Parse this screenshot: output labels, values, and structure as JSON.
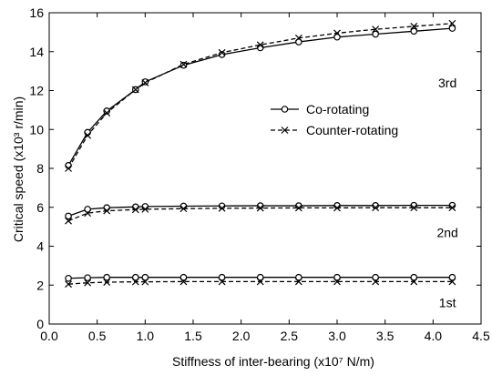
{
  "chart_data": {
    "type": "line",
    "xlabel": "Stiffness of inter-bearing (x10⁷ N/m)",
    "ylabel": "Critical speed (x10³ r/min)",
    "xlim": [
      0.0,
      4.5
    ],
    "ylim": [
      0,
      16
    ],
    "xticks": [
      "0.0",
      "0.5",
      "1.0",
      "1.5",
      "2.0",
      "2.5",
      "3.0",
      "3.5",
      "4.0",
      "4.5"
    ],
    "yticks": [
      "0",
      "2",
      "4",
      "6",
      "8",
      "10",
      "12",
      "14",
      "16"
    ],
    "grid": false,
    "legend_position": "center-right",
    "mode_labels": [
      {
        "text": "3rd",
        "x": 4.15,
        "y": 12.4
      },
      {
        "text": "2nd",
        "x": 4.15,
        "y": 4.7
      },
      {
        "text": "1st",
        "x": 4.15,
        "y": 1.1
      }
    ],
    "x": [
      0.2,
      0.4,
      0.6,
      0.9,
      1.0,
      1.4,
      1.8,
      2.2,
      2.6,
      3.0,
      3.4,
      3.8,
      4.2
    ],
    "series": [
      {
        "name": "Co-rotating",
        "mode": "3rd",
        "style": "solid",
        "marker": "circle",
        "values": [
          8.15,
          9.85,
          10.95,
          12.05,
          12.45,
          13.3,
          13.85,
          14.2,
          14.5,
          14.75,
          14.9,
          15.05,
          15.2
        ]
      },
      {
        "name": "Counter-rotating",
        "mode": "3rd",
        "style": "dashed",
        "marker": "x",
        "values": [
          8.0,
          9.7,
          10.85,
          12.05,
          12.4,
          13.35,
          13.95,
          14.35,
          14.7,
          14.95,
          15.15,
          15.3,
          15.45
        ]
      },
      {
        "name": "Co-rotating",
        "mode": "2nd",
        "style": "solid",
        "marker": "circle",
        "values": [
          5.55,
          5.9,
          5.98,
          6.02,
          6.04,
          6.06,
          6.07,
          6.08,
          6.08,
          6.09,
          6.09,
          6.1,
          6.1
        ]
      },
      {
        "name": "Counter-rotating",
        "mode": "2nd",
        "style": "dashed",
        "marker": "x",
        "values": [
          5.3,
          5.7,
          5.82,
          5.88,
          5.9,
          5.93,
          5.95,
          5.96,
          5.97,
          5.97,
          5.98,
          5.98,
          5.98
        ]
      },
      {
        "name": "Co-rotating",
        "mode": "1st",
        "style": "solid",
        "marker": "circle",
        "values": [
          2.35,
          2.38,
          2.4,
          2.4,
          2.4,
          2.4,
          2.4,
          2.4,
          2.4,
          2.4,
          2.4,
          2.4,
          2.4
        ]
      },
      {
        "name": "Counter-rotating",
        "mode": "1st",
        "style": "dashed",
        "marker": "x",
        "values": [
          2.05,
          2.12,
          2.15,
          2.17,
          2.17,
          2.18,
          2.18,
          2.18,
          2.18,
          2.18,
          2.18,
          2.18,
          2.18
        ]
      }
    ],
    "legend": [
      {
        "label": "Co-rotating",
        "style": "solid",
        "marker": "circle"
      },
      {
        "label": "Counter-rotating",
        "style": "dashed",
        "marker": "x"
      }
    ]
  }
}
